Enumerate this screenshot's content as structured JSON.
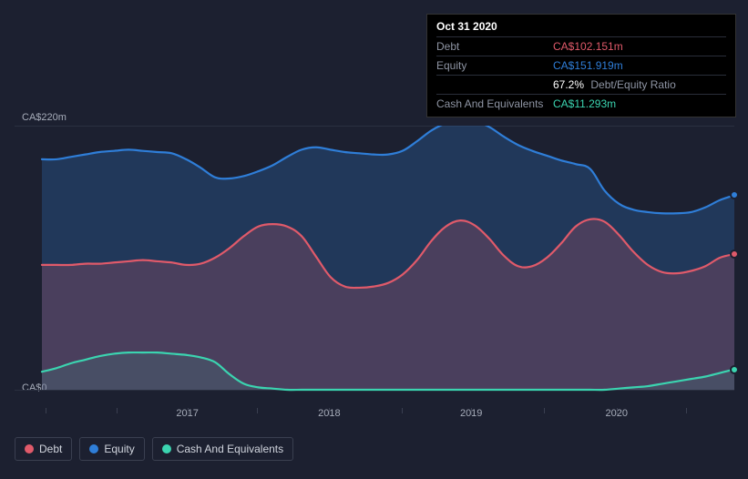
{
  "chart": {
    "type": "area",
    "background_color": "#1c2030",
    "grid_color": "#2a3040",
    "x_axis": {
      "ticks": [
        {
          "label": "2017",
          "pos": 0.21
        },
        {
          "label": "2018",
          "pos": 0.415
        },
        {
          "label": "2019",
          "pos": 0.62
        },
        {
          "label": "2020",
          "pos": 0.83
        }
      ],
      "minor_tick_positions": [
        0.005,
        0.108,
        0.31,
        0.52,
        0.725,
        0.93
      ]
    },
    "y_axis": {
      "top_label": "CA$220m",
      "bottom_label": "CA$0",
      "min": 0,
      "max": 220
    },
    "series": {
      "equity": {
        "color": "#2f7ed8",
        "fill": "rgba(47,126,216,0.25)",
        "values": [
          192,
          192,
          194,
          196,
          198,
          199,
          200,
          199,
          198,
          197,
          192,
          185,
          177,
          176,
          178,
          182,
          187,
          194,
          200,
          202,
          200,
          198,
          197,
          196,
          196,
          199,
          207,
          216,
          222,
          225,
          224,
          219,
          211,
          204,
          199,
          195,
          191,
          188,
          184,
          166,
          155,
          150,
          148,
          147,
          147,
          148,
          152,
          158,
          162
        ]
      },
      "debt": {
        "color": "#e05a6a",
        "fill": "rgba(224,90,106,0.22)",
        "values": [
          104,
          104,
          104,
          105,
          105,
          106,
          107,
          108,
          107,
          106,
          104,
          105,
          110,
          118,
          128,
          136,
          138,
          136,
          128,
          111,
          94,
          86,
          85,
          86,
          89,
          96,
          108,
          124,
          136,
          141,
          137,
          126,
          112,
          103,
          103,
          110,
          122,
          136,
          142,
          140,
          129,
          115,
          104,
          98,
          97,
          99,
          103,
          110,
          113
        ]
      },
      "cash": {
        "color": "#3bd4b0",
        "fill": "rgba(59,212,176,0.10)",
        "values": [
          15,
          18,
          22,
          25,
          28,
          30,
          31,
          31,
          31,
          30,
          29,
          27,
          23,
          13,
          5,
          2,
          1,
          0,
          0,
          0,
          0,
          0,
          0,
          0,
          0,
          0,
          0,
          0,
          0,
          0,
          0,
          0,
          0,
          0,
          0,
          0,
          0,
          0,
          0,
          0,
          1,
          2,
          3,
          5,
          7,
          9,
          11,
          14,
          17
        ]
      }
    },
    "end_markers": [
      {
        "series": "equity",
        "y": 162,
        "color": "#2f7ed8"
      },
      {
        "series": "debt",
        "y": 113,
        "color": "#e05a6a"
      },
      {
        "series": "cash",
        "y": 17,
        "color": "#3bd4b0"
      }
    ]
  },
  "tooltip": {
    "date": "Oct 31 2020",
    "rows": [
      {
        "label": "Debt",
        "value": "CA$102.151m",
        "color": "#e05a6a"
      },
      {
        "label": "Equity",
        "value": "CA$151.919m",
        "color": "#2f7ed8"
      },
      {
        "label": "",
        "value": "67.2%",
        "suffix": "Debt/Equity Ratio",
        "color": "#ffffff"
      },
      {
        "label": "Cash And Equivalents",
        "value": "CA$11.293m",
        "color": "#3bd4b0"
      }
    ]
  },
  "legend": [
    {
      "label": "Debt",
      "color": "#e05a6a"
    },
    {
      "label": "Equity",
      "color": "#2f7ed8"
    },
    {
      "label": "Cash And Equivalents",
      "color": "#3bd4b0"
    }
  ]
}
